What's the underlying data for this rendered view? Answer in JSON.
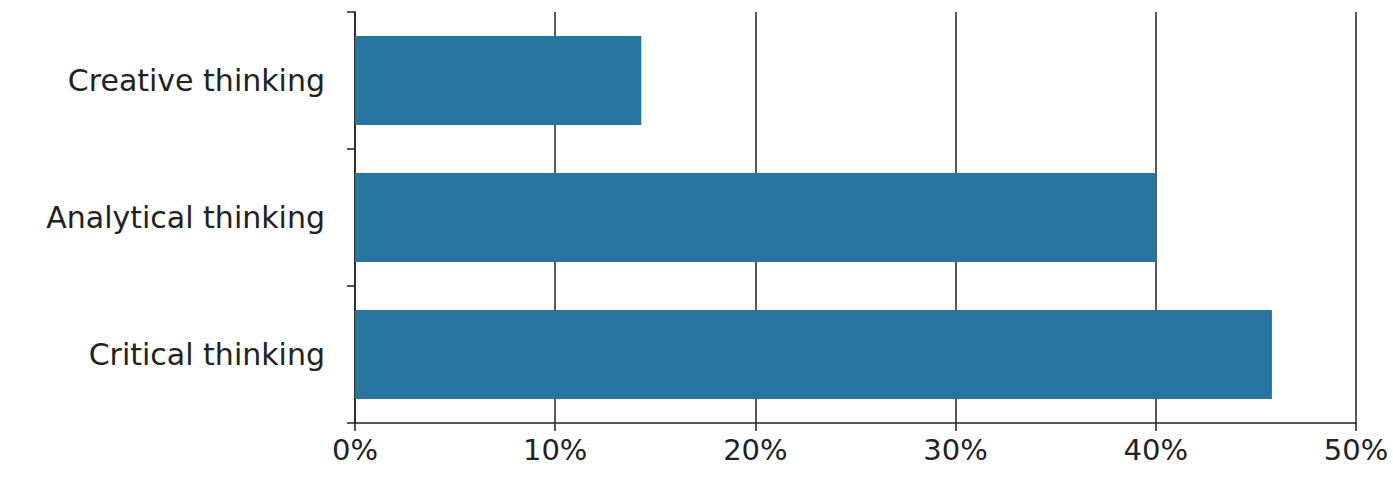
{
  "chart_data": {
    "type": "bar",
    "orientation": "horizontal",
    "categories": [
      "Creative thinking",
      "Analytical thinking",
      "Critical thinking"
    ],
    "values": [
      14.3,
      40,
      45.8
    ],
    "color": "#2774a0",
    "xlim": [
      0,
      50
    ],
    "xticks": [
      {
        "value": 0,
        "label": "0%"
      },
      {
        "value": 10,
        "label": "10%"
      },
      {
        "value": 20,
        "label": "20%"
      },
      {
        "value": 30,
        "label": "30%"
      },
      {
        "value": 40,
        "label": "40%"
      },
      {
        "value": 50,
        "label": "50%"
      }
    ],
    "grid": true
  }
}
